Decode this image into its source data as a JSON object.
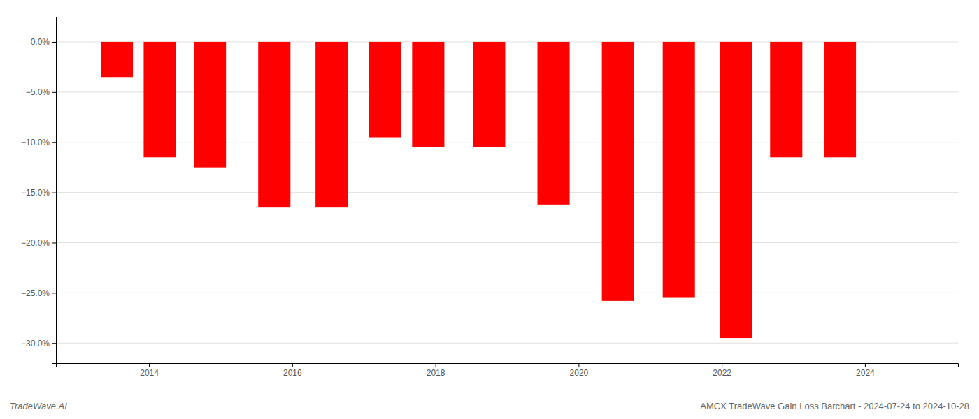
{
  "chart_data": {
    "type": "bar",
    "title": "AMCX TradeWave Gain Loss Barchart - 2024-07-24 to 2024-10-28",
    "annotations": [
      "TradeWave.AI"
    ],
    "x": [
      2013.55,
      2014.15,
      2014.85,
      2015.75,
      2016.55,
      2017.3,
      2017.9,
      2018.75,
      2019.65,
      2020.55,
      2021.4,
      2022.2,
      2022.9,
      2023.65
    ],
    "values": [
      -3.5,
      -11.5,
      -12.5,
      -16.5,
      -16.5,
      -9.5,
      -10.5,
      -10.5,
      -16.2,
      -25.8,
      -25.5,
      -29.5,
      -11.5,
      -11.5
    ],
    "color": "#ff0000",
    "xlim": [
      2012.7,
      2025.3
    ],
    "xticks": [
      2014,
      2016,
      2018,
      2020,
      2022,
      2024
    ],
    "ylim": [
      -32,
      2.5
    ],
    "yticks": [
      {
        "value": 0.0,
        "label": "0.0%"
      },
      {
        "value": -5.0,
        "label": "−5.0%"
      },
      {
        "value": -10.0,
        "label": "−10.0%"
      },
      {
        "value": -15.0,
        "label": "−15.0%"
      },
      {
        "value": -20.0,
        "label": "−20.0%"
      },
      {
        "value": -25.0,
        "label": "−25.0%"
      },
      {
        "value": -30.0,
        "label": "−30.0%"
      }
    ],
    "grid": true
  }
}
